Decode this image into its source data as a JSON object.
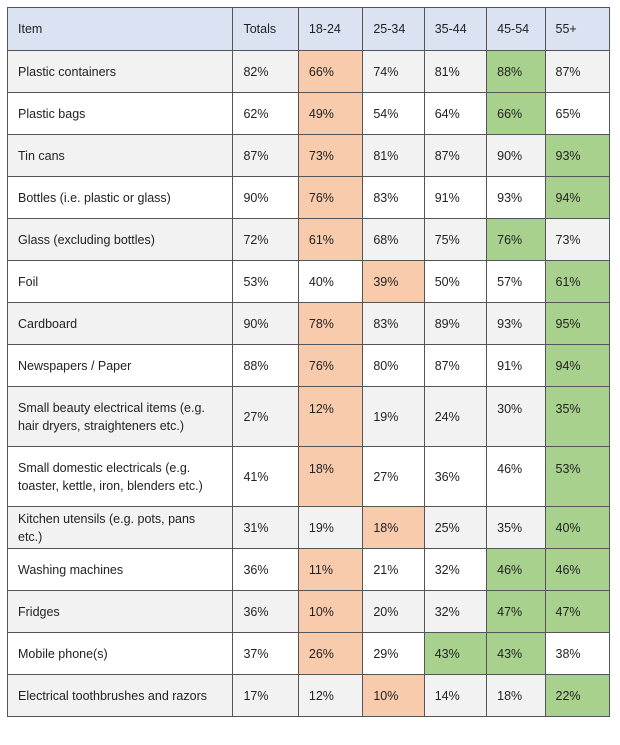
{
  "colors": {
    "header_bg": "#dbe3f3",
    "lowest_highlight": "#f8cbad",
    "highest_highlight": "#a9d18e",
    "border": "#555555"
  },
  "headers": [
    "Item",
    "Totals",
    "18-24",
    "25-34",
    "35-44",
    "45-54",
    "55+"
  ],
  "rows": [
    {
      "item": "Plastic containers",
      "values": [
        "82%",
        "66%",
        "74%",
        "81%",
        "88%",
        "87%"
      ],
      "low": [
        1
      ],
      "high": [
        4
      ]
    },
    {
      "item": "Plastic bags",
      "values": [
        "62%",
        "49%",
        "54%",
        "64%",
        "66%",
        "65%"
      ],
      "low": [
        1
      ],
      "high": [
        4
      ]
    },
    {
      "item": "Tin cans",
      "values": [
        "87%",
        "73%",
        "81%",
        "87%",
        "90%",
        "93%"
      ],
      "low": [
        1
      ],
      "high": [
        5
      ]
    },
    {
      "item": "Bottles (i.e. plastic or glass)",
      "values": [
        "90%",
        "76%",
        "83%",
        "91%",
        "93%",
        "94%"
      ],
      "low": [
        1
      ],
      "high": [
        5
      ]
    },
    {
      "item": "Glass (excluding bottles)",
      "values": [
        "72%",
        "61%",
        "68%",
        "75%",
        "76%",
        "73%"
      ],
      "low": [
        1
      ],
      "high": [
        4
      ]
    },
    {
      "item": "Foil",
      "values": [
        "53%",
        "40%",
        "39%",
        "50%",
        "57%",
        "61%"
      ],
      "low": [
        2
      ],
      "high": [
        5
      ]
    },
    {
      "item": "Cardboard",
      "values": [
        "90%",
        "78%",
        "83%",
        "89%",
        "93%",
        "95%"
      ],
      "low": [
        1
      ],
      "high": [
        5
      ]
    },
    {
      "item": "Newspapers / Paper",
      "values": [
        "88%",
        "76%",
        "80%",
        "87%",
        "91%",
        "94%"
      ],
      "low": [
        1
      ],
      "high": [
        5
      ]
    },
    {
      "item": "Small beauty electrical items (e.g. hair dryers, straighteners etc.)",
      "values": [
        "27%",
        "12%",
        "19%",
        "24%",
        "30%",
        "35%"
      ],
      "low": [
        1
      ],
      "high": [
        5
      ],
      "tall": true,
      "top": [
        1,
        4,
        5
      ]
    },
    {
      "item": "Small domestic electricals (e.g. toaster, kettle, iron, blenders etc.)",
      "values": [
        "41%",
        "18%",
        "27%",
        "36%",
        "46%",
        "53%"
      ],
      "low": [
        1
      ],
      "high": [
        5
      ],
      "tall": true,
      "top": [
        1,
        4,
        5
      ]
    },
    {
      "item": "Kitchen utensils (e.g. pots, pans etc.)",
      "values": [
        "31%",
        "19%",
        "18%",
        "25%",
        "35%",
        "40%"
      ],
      "low": [
        2
      ],
      "high": [
        5
      ]
    },
    {
      "item": "Washing machines",
      "values": [
        "36%",
        "11%",
        "21%",
        "32%",
        "46%",
        "46%"
      ],
      "low": [
        1
      ],
      "high": [
        4,
        5
      ]
    },
    {
      "item": "Fridges",
      "values": [
        "36%",
        "10%",
        "20%",
        "32%",
        "47%",
        "47%"
      ],
      "low": [
        1
      ],
      "high": [
        4,
        5
      ]
    },
    {
      "item": "Mobile phone(s)",
      "values": [
        "37%",
        "26%",
        "29%",
        "43%",
        "43%",
        "38%"
      ],
      "low": [
        1
      ],
      "high": [
        3,
        4
      ]
    },
    {
      "item": "Electrical toothbrushes and razors",
      "values": [
        "17%",
        "12%",
        "10%",
        "14%",
        "18%",
        "22%"
      ],
      "low": [
        2
      ],
      "high": [
        5
      ]
    }
  ]
}
